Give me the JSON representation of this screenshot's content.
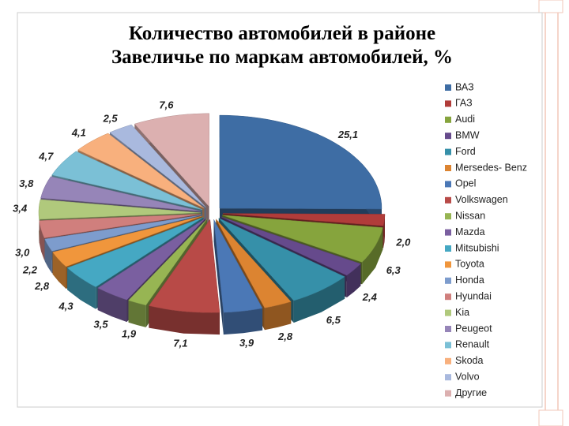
{
  "chart_data": {
    "type": "pie",
    "title": [
      "Количество автомобилей в районе",
      "Завеличье по маркам автомобилей, %"
    ],
    "categories": [
      "ВАЗ",
      "ГАЗ",
      "Audi",
      "BMW",
      "Ford",
      "Mersedes- Benz",
      "Opel",
      "Volkswagen",
      "Nissan",
      "Mazda",
      "Mitsubishi",
      "Toyota",
      "Honda",
      "Hyundai",
      "Kia",
      "Peugeot",
      "Renault",
      "Skoda",
      "Volvo",
      "Другие"
    ],
    "values": [
      25.1,
      2.0,
      6.3,
      2.4,
      6.5,
      2.8,
      3.9,
      7.1,
      1.9,
      3.5,
      4.3,
      2.8,
      2.2,
      3.0,
      3.4,
      3.8,
      4.7,
      4.1,
      2.5,
      7.6
    ],
    "value_labels": [
      "25,1",
      "2,0",
      "6,3",
      "2,4",
      "6,5",
      "2,8",
      "3,9",
      "7,1",
      "1,9",
      "3,5",
      "4,3",
      "2,8",
      "2,2",
      "3,0",
      "3,4",
      "3,8",
      "4,7",
      "4,1",
      "2,5",
      "7,6"
    ],
    "colors": [
      "#3e6da4",
      "#b13c3a",
      "#86a43d",
      "#664a8c",
      "#3690a9",
      "#dc8431",
      "#4b78b6",
      "#b84a47",
      "#97b553",
      "#7a5fa0",
      "#45a8c3",
      "#f0963c",
      "#7d9ccd",
      "#d07f7d",
      "#b0c97c",
      "#9685b8",
      "#7bc0d6",
      "#f8b07d",
      "#a9b9de",
      "#dcb0b0"
    ],
    "legend": "right"
  }
}
